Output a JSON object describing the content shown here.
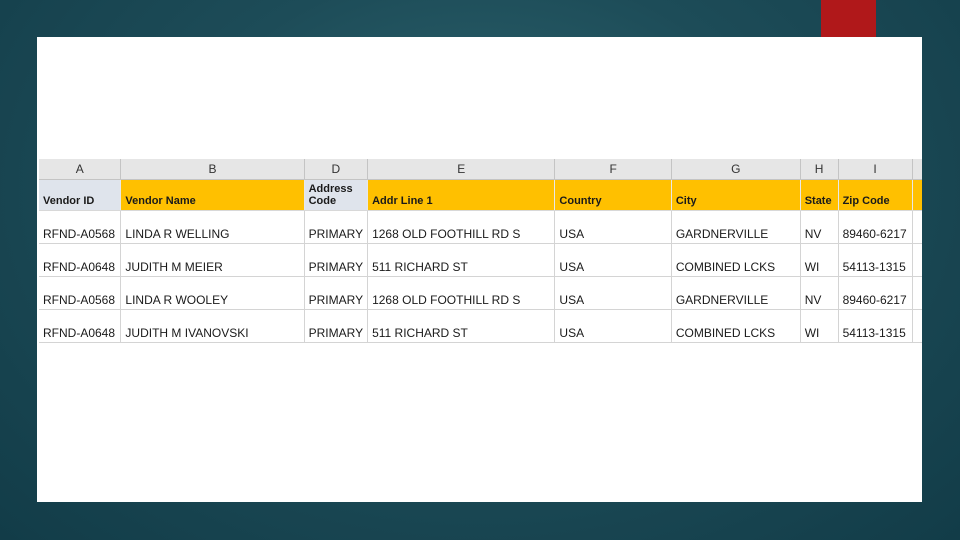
{
  "sheet": {
    "column_letters": [
      "A",
      "B",
      "D",
      "E",
      "F",
      "G",
      "H",
      "I",
      ""
    ],
    "headers": [
      "Vendor ID",
      "Vendor Name",
      "Address Code",
      "Addr Line 1",
      "Country",
      "City",
      "State",
      "Zip Code",
      ""
    ],
    "rows": [
      [
        "RFND-A0568",
        "LINDA R WELLING",
        "PRIMARY",
        "1268 OLD FOOTHILL RD S",
        "USA",
        "GARDNERVILLE",
        "NV",
        "89460-6217"
      ],
      [
        "RFND-A0648",
        "JUDITH M MEIER",
        "PRIMARY",
        "511 RICHARD ST",
        "USA",
        "COMBINED LCKS",
        "WI",
        "54113-1315"
      ],
      [
        "RFND-A0568",
        "LINDA R WOOLEY",
        "PRIMARY",
        "1268 OLD FOOTHILL RD S",
        "USA",
        "GARDNERVILLE",
        "NV",
        "89460-6217"
      ],
      [
        "RFND-A0648",
        "JUDITH M IVANOVSKI",
        "PRIMARY",
        "511 RICHARD ST",
        "USA",
        "COMBINED LCKS",
        "WI",
        "54113-1315"
      ]
    ]
  },
  "colors": {
    "header_fill": "#ffc000",
    "header_gray": "#dfe4ec",
    "accent": "#b0181a",
    "background": "#1d4c58"
  }
}
